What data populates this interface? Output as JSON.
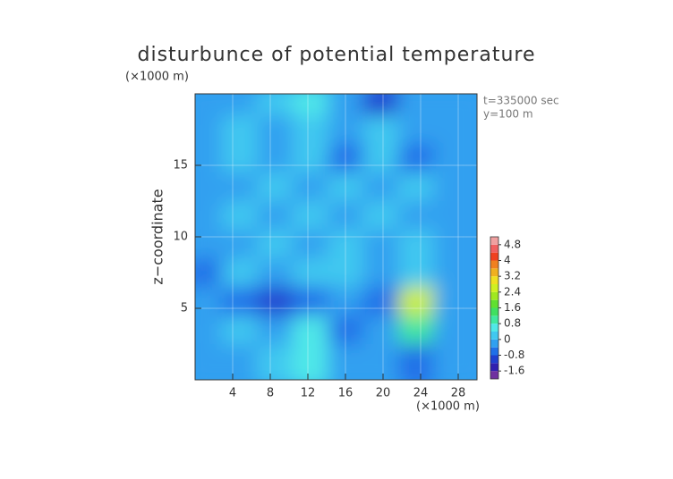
{
  "chart_data": {
    "type": "contour",
    "title": "disturbunce of potential temperature",
    "y_unit_label": "(×1000 m)",
    "x_unit_label": "(×1000 m)",
    "ylabel": "z−coordinate",
    "annotations": [
      "t=335000 sec",
      "y=100 m"
    ],
    "xlim": [
      0,
      30
    ],
    "ylim": [
      0,
      20
    ],
    "xticks": [
      4,
      8,
      12,
      16,
      20,
      24,
      28
    ],
    "yticks": [
      5,
      10,
      15
    ],
    "grid": true,
    "field": {
      "x": [
        1.9,
        5.6,
        9.4,
        13.1,
        16.9,
        20.6,
        24.4,
        28.1
      ],
      "z": [
        19,
        17,
        15,
        13,
        11,
        9,
        7,
        5,
        3,
        1
      ],
      "values": [
        [
          -0.3,
          -0.2,
          0.2,
          0.6,
          -0.2,
          -1.2,
          -0.3,
          -0.2
        ],
        [
          -0.2,
          0,
          -0.3,
          0,
          -0.3,
          0,
          -0.3,
          -0.2
        ],
        [
          -0.3,
          0.2,
          -0.4,
          0.2,
          -0.5,
          0.2,
          -0.5,
          -0.2
        ],
        [
          -0.2,
          -0.3,
          0.2,
          -0.3,
          0.2,
          -0.3,
          0.2,
          -0.3
        ],
        [
          -0.3,
          0.2,
          -0.4,
          0.1,
          -0.4,
          0.2,
          -0.3,
          -0.2
        ],
        [
          -0.2,
          -0.4,
          0.1,
          -0.2,
          0.1,
          -0.4,
          0.2,
          -0.3
        ],
        [
          -0.6,
          0,
          -0.2,
          0.2,
          0.2,
          -0.3,
          0.2,
          -0.3
        ],
        [
          -0.4,
          -0.6,
          -1.2,
          -0.8,
          -0.3,
          -0.8,
          2.4,
          -0.2
        ],
        [
          -0.3,
          0.2,
          -0.3,
          0.4,
          -0.8,
          -0.4,
          0.8,
          -0.4
        ],
        [
          -0.2,
          -0.3,
          0.2,
          0.6,
          -0.4,
          -0.4,
          -0.8,
          -0.2
        ]
      ]
    },
    "colorbar": {
      "levels": [
        -2,
        -1.6,
        -1.2,
        -0.8,
        -0.4,
        0,
        0.4,
        0.8,
        1.2,
        1.6,
        2,
        2.4,
        2.8,
        3.2,
        3.6,
        4,
        4.4,
        4.8,
        5.2
      ],
      "colors": [
        "#7030a0",
        "#3020b0",
        "#2040d0",
        "#2070e8",
        "#30a0f0",
        "#40c8f0",
        "#50e8e8",
        "#40e8a0",
        "#40e060",
        "#60e030",
        "#a0e820",
        "#d0f020",
        "#f0e020",
        "#f0b020",
        "#f08020",
        "#f04020",
        "#f06060",
        "#f0a0a0"
      ],
      "ticks": [
        -1.6,
        -0.8,
        0,
        0.8,
        1.6,
        2.4,
        3.2,
        4,
        4.8
      ]
    }
  }
}
